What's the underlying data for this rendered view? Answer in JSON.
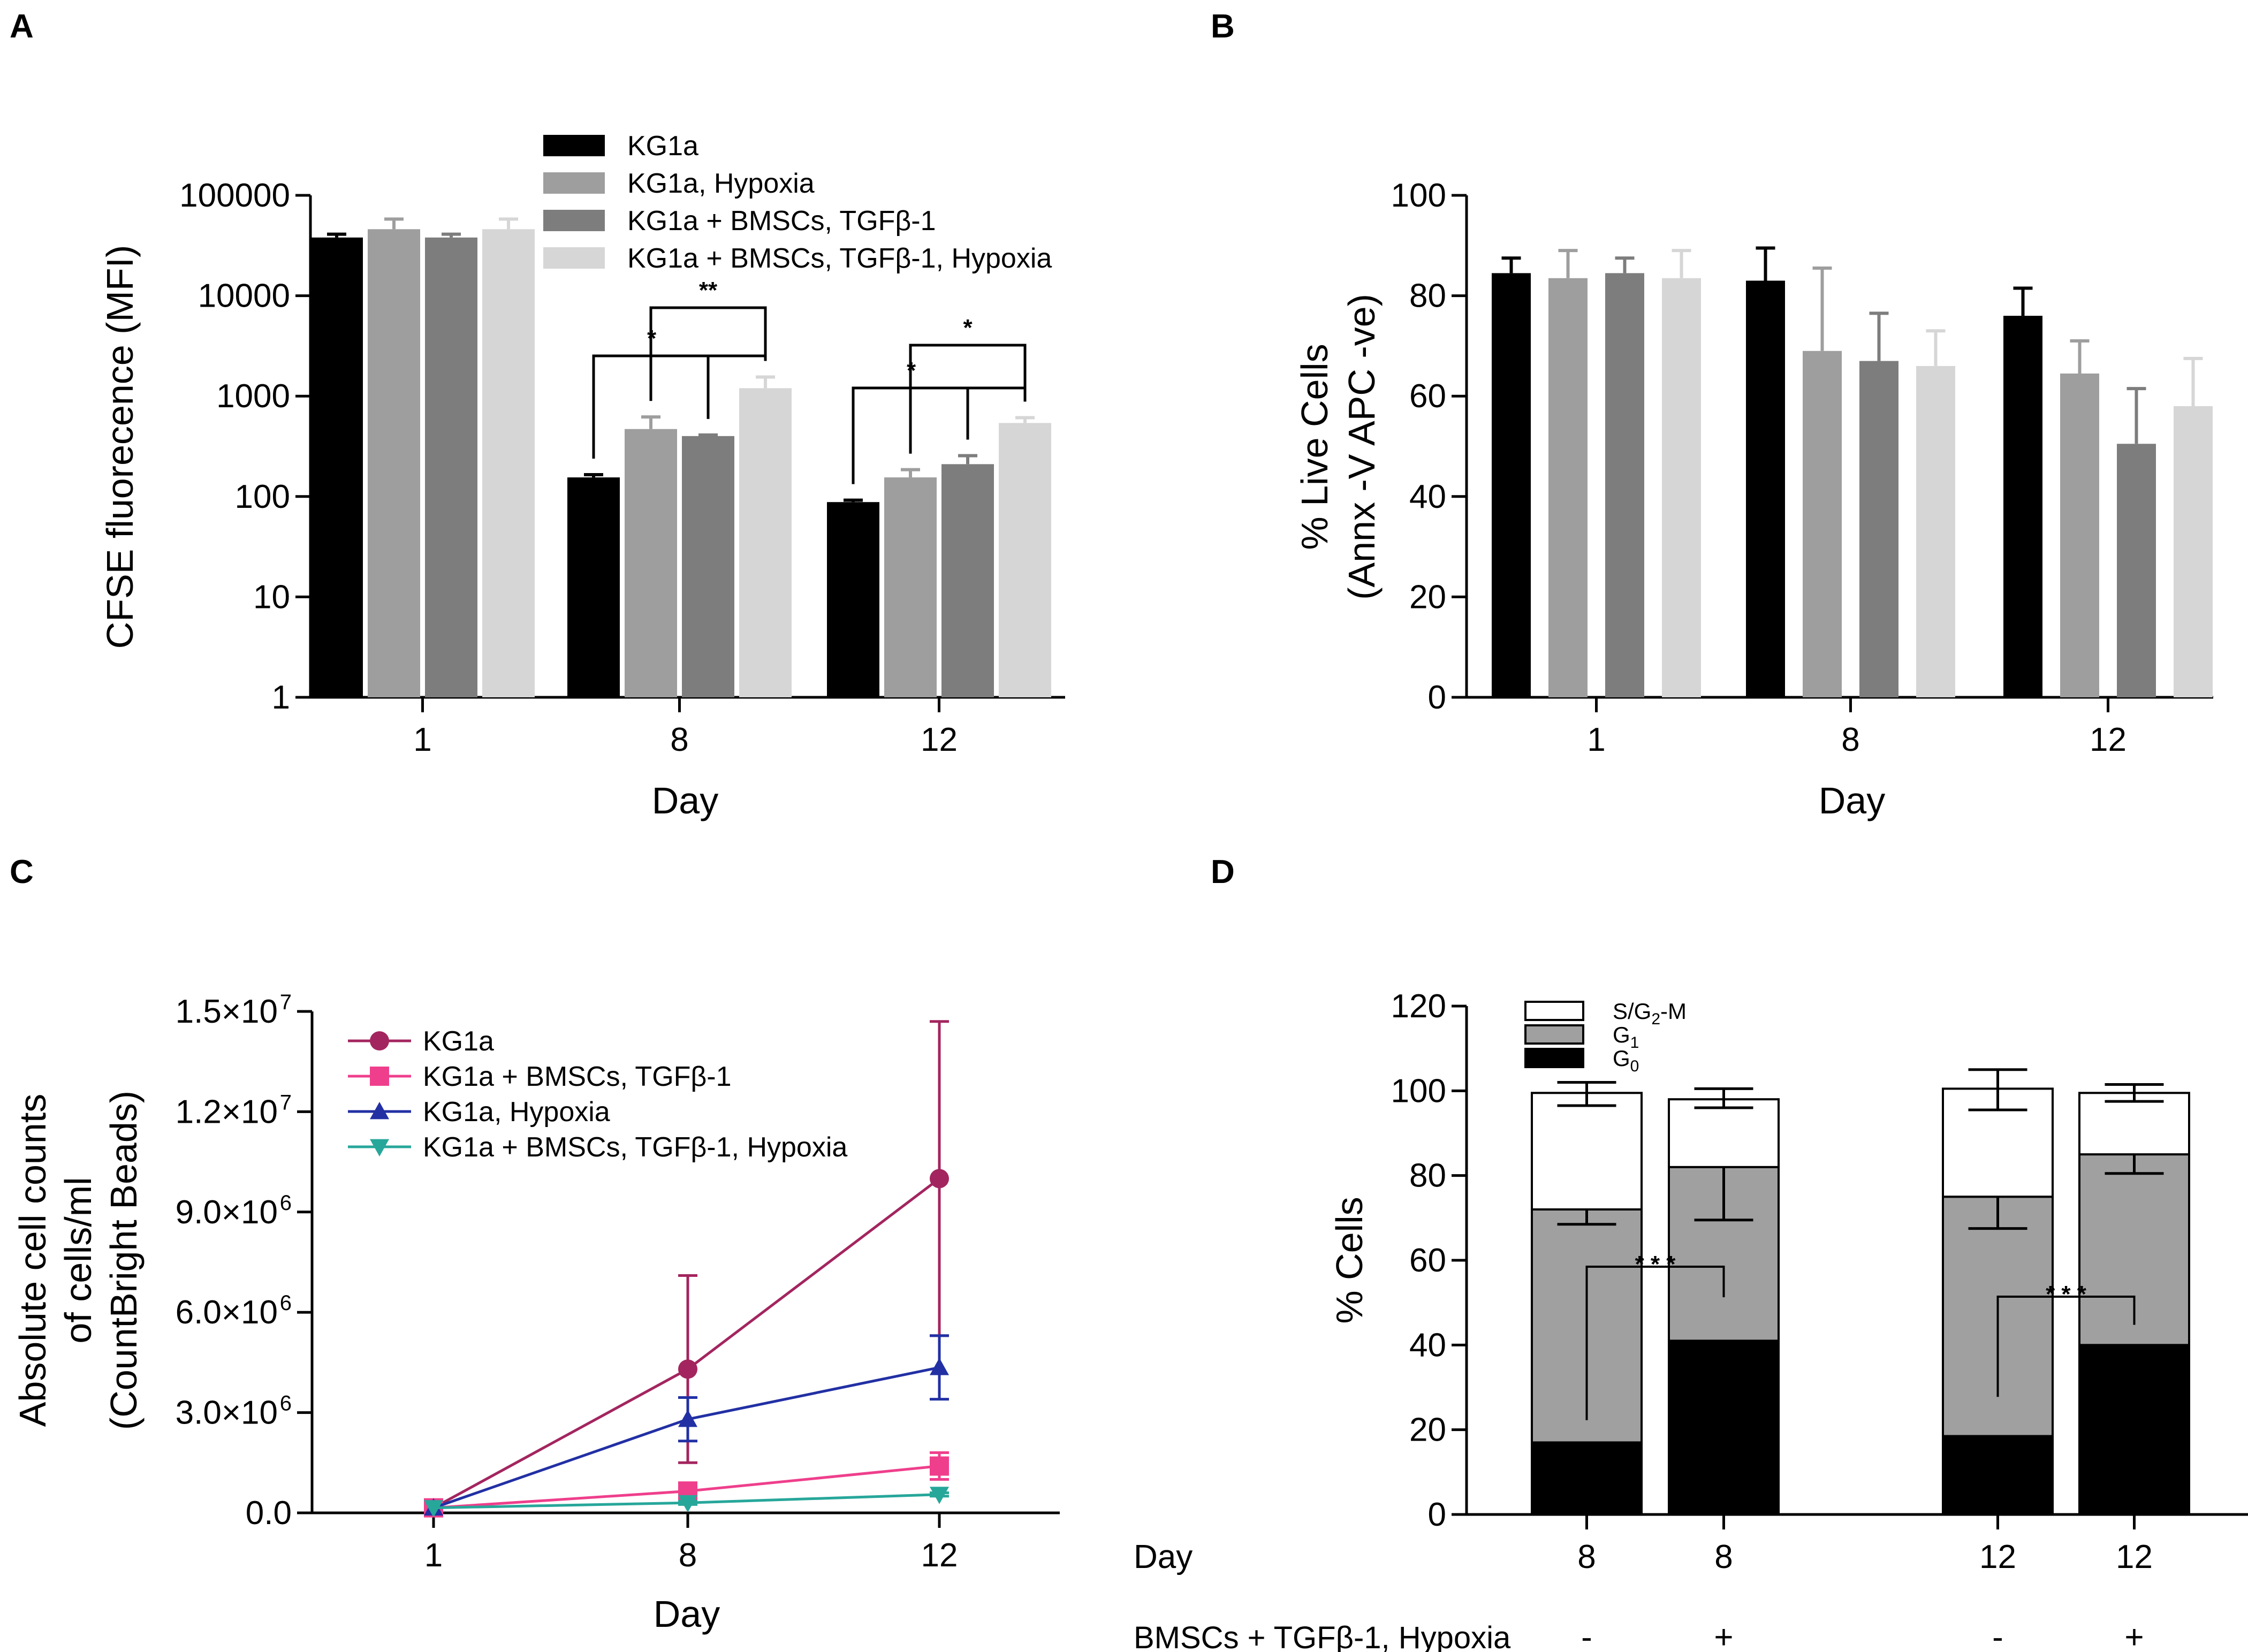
{
  "panel_labels": [
    "A",
    "B",
    "C",
    "D"
  ],
  "colors": {
    "KG1a": "#000000",
    "KG1a, Hypoxia": "#9e9e9e",
    "KG1a + BMSCs, TGFβ-1": "#7d7d7d",
    "KG1a + BMSCs, TGFβ-1, Hypoxia": "#d6d6d6",
    "line_KG1a": "#a3255f",
    "line_bmsc": "#ef3f8c",
    "line_hypoxia": "#2230a4",
    "line_bmsc_hypoxia": "#27a79a",
    "G0": "#000000",
    "G1": "#a0a0a0",
    "SG2M": "#ffffff"
  },
  "chart_data": [
    {
      "id": "A",
      "type": "bar",
      "scale": "log",
      "categories": [
        "1",
        "8",
        "12"
      ],
      "xlabel": "Day",
      "ylabel": "CFSE fluorecence (MFI)",
      "ylim": [
        1,
        100000
      ],
      "yticks": [
        1,
        10,
        100,
        1000,
        10000,
        100000
      ],
      "ytick_labels": [
        "1",
        "10",
        "100",
        "1000",
        "10000",
        "100000"
      ],
      "series": [
        {
          "name": "KG1a",
          "values": [
            38000,
            155,
            88
          ],
          "errors": [
            41000,
            165,
            92
          ]
        },
        {
          "name": "KG1a, Hypoxia",
          "values": [
            46000,
            470,
            155
          ],
          "errors": [
            58000,
            620,
            185
          ]
        },
        {
          "name": "KG1a + BMSCs, TGFβ-1",
          "values": [
            38000,
            400,
            210
          ],
          "errors": [
            41000,
            410,
            255
          ]
        },
        {
          "name": "KG1a + BMSCs, TGFβ-1, Hypoxia",
          "values": [
            46000,
            1200,
            540
          ],
          "errors": [
            58000,
            1550,
            610
          ]
        }
      ],
      "significance": [
        {
          "group": "8",
          "from": 1,
          "to": 3,
          "label": "**"
        },
        {
          "group": "8",
          "from": 0,
          "to": 3,
          "label": "*",
          "branches": [
            1,
            2
          ]
        },
        {
          "group": "12",
          "from": 1,
          "to": 3,
          "label": "*"
        },
        {
          "group": "12",
          "from": 0,
          "to": 3,
          "label": "*",
          "branches": [
            1,
            2
          ]
        }
      ],
      "legend": [
        "KG1a",
        "KG1a, Hypoxia",
        "KG1a + BMSCs, TGFβ-1",
        "KG1a + BMSCs, TGFβ-1, Hypoxia"
      ]
    },
    {
      "id": "B",
      "type": "bar",
      "categories": [
        "1",
        "8",
        "12"
      ],
      "xlabel": "Day",
      "ylabel_lines": [
        "% Live Cells",
        "(Annx -V APC -ve)"
      ],
      "ylim": [
        0,
        100
      ],
      "yticks": [
        0,
        20,
        40,
        60,
        80,
        100
      ],
      "ytick_labels": [
        "0",
        "20",
        "40",
        "60",
        "80",
        "100"
      ],
      "series": [
        {
          "name": "KG1a",
          "values": [
            84.5,
            83,
            76
          ],
          "errors": [
            87.5,
            89.5,
            81.5
          ]
        },
        {
          "name": "KG1a, Hypoxia",
          "values": [
            83.5,
            69,
            64.5
          ],
          "errors": [
            89,
            85.5,
            71
          ]
        },
        {
          "name": "KG1a + BMSCs, TGFβ-1",
          "values": [
            84.5,
            67,
            50.5
          ],
          "errors": [
            87.5,
            76.5,
            61.5
          ]
        },
        {
          "name": "KG1a + BMSCs, TGFβ-1, Hypoxia",
          "values": [
            83.5,
            66,
            58
          ],
          "errors": [
            89,
            73,
            67.5
          ]
        }
      ]
    },
    {
      "id": "C",
      "type": "line",
      "x_labels": [
        "1",
        "8",
        "12"
      ],
      "xlabel": "Day",
      "ylabel_lines": [
        "Absolute cell counts",
        "of cells/ml",
        "(CountBright Beads)"
      ],
      "ylim": [
        0,
        15000000
      ],
      "yticks": [
        0,
        3000000,
        6000000,
        9000000,
        12000000,
        15000000
      ],
      "ytick_labels": [
        [
          "0.0",
          ""
        ],
        [
          "3.0×10",
          "6"
        ],
        [
          "6.0×10",
          "6"
        ],
        [
          "9.0×10",
          "6"
        ],
        [
          "1.2×10",
          "7"
        ],
        [
          "1.5×10",
          "7"
        ]
      ],
      "series": [
        {
          "name": "KG1a",
          "marker": "circle",
          "values": [
            150000,
            4300000,
            10000000
          ],
          "errors": [
            0,
            2800000,
            4700000
          ]
        },
        {
          "name": "KG1a + BMSCs, TGFβ-1",
          "marker": "square",
          "values": [
            150000,
            650000,
            1400000
          ],
          "errors": [
            0,
            250000,
            400000
          ]
        },
        {
          "name": "KG1a, Hypoxia",
          "marker": "triangle-up",
          "values": [
            150000,
            2800000,
            4350000
          ],
          "errors": [
            0,
            650000,
            950000
          ]
        },
        {
          "name": "KG1a + BMSCs, TGFβ-1, Hypoxia",
          "marker": "triangle-down",
          "values": [
            150000,
            300000,
            550000
          ],
          "errors": [
            0,
            50000,
            50000
          ]
        }
      ],
      "legend": [
        "KG1a",
        "KG1a + BMSCs, TGFβ-1",
        "KG1a, Hypoxia",
        "KG1a + BMSCs, TGFβ-1, Hypoxia"
      ]
    },
    {
      "id": "D",
      "type": "stacked_bar",
      "row_labels": [
        "Day",
        "BMSCs + TGFβ-1, Hypoxia"
      ],
      "days": [
        "8",
        "8",
        "12",
        "12"
      ],
      "treatment": [
        "-",
        "+",
        "-",
        "+"
      ],
      "ylabel": "% Cells",
      "ylim": [
        0,
        120
      ],
      "yticks": [
        0,
        20,
        40,
        60,
        80,
        100,
        120
      ],
      "ytick_labels": [
        "0",
        "20",
        "40",
        "60",
        "80",
        "100",
        "120"
      ],
      "stacks": [
        {
          "name": "G0",
          "values": [
            17,
            41,
            18.5,
            40
          ],
          "err_up": [
            21,
            50,
            26.5,
            43.5
          ],
          "err_down": [
            null,
            null,
            null,
            null
          ]
        },
        {
          "name": "G1",
          "values": [
            55,
            41,
            56.5,
            45
          ],
          "top_up": [
            75.5,
            95,
            82,
            89.5
          ],
          "top_down": [
            68.5,
            69.5,
            67.5,
            80.5
          ]
        },
        {
          "name": "S/G2-M",
          "values": [
            27.5,
            16,
            25.5,
            14.5
          ],
          "top_up": [
            102,
            100.5,
            105,
            101.5
          ],
          "top_down": [
            96.5,
            96,
            95.5,
            97.5
          ]
        }
      ],
      "legend": [
        {
          "key": "SG2M",
          "pre": "S/G",
          "sub": "2",
          "post": "-M"
        },
        {
          "key": "G1",
          "pre": "G",
          "sub": "1",
          "post": ""
        },
        {
          "key": "G0",
          "pre": "G",
          "sub": "0",
          "post": ""
        }
      ],
      "significance": [
        {
          "from": 0,
          "to": 1,
          "label": "* * *"
        },
        {
          "from": 2,
          "to": 3,
          "label": "* * *"
        }
      ]
    }
  ]
}
